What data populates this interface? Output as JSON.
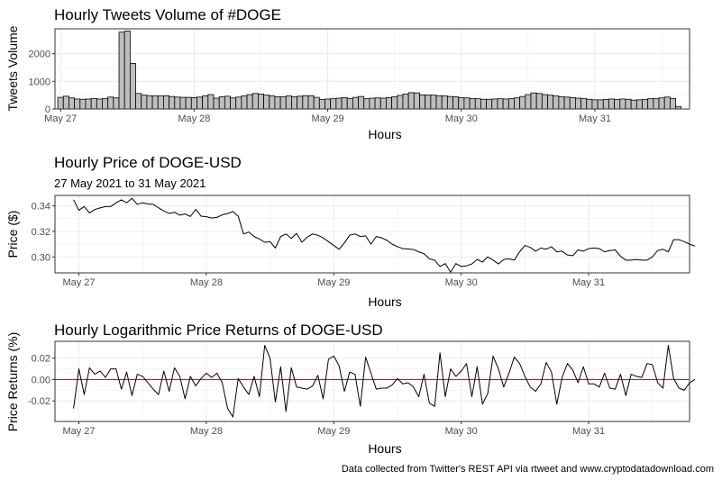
{
  "caption": "Data collected from Twitter's REST API via rtweet and www.cryptodatadownload.com",
  "colors": {
    "bar_fill": "#bebebe",
    "line": "#000000",
    "zero_line": "#b22222",
    "grid": "#ebebeb",
    "panel_border": "#333333"
  },
  "chart_data": [
    {
      "type": "bar",
      "title": "Hourly Tweets Volume of #DOGE",
      "xlabel": "Hours",
      "ylabel": "Tweets Volume",
      "xticks": [
        "May 27",
        "May 28",
        "May 29",
        "May 30",
        "May 31"
      ],
      "yticks": [
        "0",
        "1000",
        "2000"
      ],
      "ylim": [
        0,
        2900
      ],
      "x_hour_range": [
        -1,
        113
      ],
      "grid": true,
      "values": [
        420,
        460,
        400,
        360,
        350,
        360,
        380,
        360,
        380,
        430,
        400,
        2780,
        2820,
        1650,
        560,
        500,
        480,
        470,
        470,
        480,
        450,
        430,
        420,
        420,
        410,
        430,
        470,
        520,
        390,
        440,
        460,
        400,
        430,
        470,
        520,
        560,
        540,
        500,
        470,
        440,
        440,
        470,
        440,
        460,
        480,
        480,
        420,
        340,
        360,
        370,
        390,
        410,
        380,
        420,
        450,
        370,
        390,
        400,
        390,
        410,
        440,
        490,
        540,
        590,
        580,
        510,
        510,
        500,
        480,
        470,
        450,
        440,
        410,
        400,
        380,
        370,
        350,
        350,
        360,
        370,
        360,
        370,
        400,
        450,
        520,
        580,
        560,
        520,
        500,
        470,
        440,
        430,
        410,
        390,
        380,
        350,
        330,
        330,
        340,
        360,
        340,
        360,
        350,
        320,
        330,
        340,
        380,
        370,
        400,
        430,
        380,
        90
      ]
    },
    {
      "type": "line",
      "title": "Hourly Price of DOGE-USD",
      "subtitle": "27 May 2021 to 31 May 2021",
      "xlabel": "Hours",
      "ylabel": "Price ($)",
      "xticks": [
        "May 27",
        "May 28",
        "May 29",
        "May 30",
        "May 31"
      ],
      "yticks": [
        "0.30",
        "0.32",
        "0.34"
      ],
      "ylim": [
        0.2875,
        0.3482
      ],
      "x_hour_range": [
        -3.5,
        116
      ],
      "grid": true,
      "values": [
        0.3448,
        0.3365,
        0.3395,
        0.3345,
        0.3372,
        0.3384,
        0.3395,
        0.3395,
        0.3424,
        0.3447,
        0.3425,
        0.3459,
        0.3412,
        0.3425,
        0.3415,
        0.3412,
        0.3385,
        0.336,
        0.3341,
        0.335,
        0.3327,
        0.3337,
        0.3317,
        0.3372,
        0.332,
        0.3315,
        0.3305,
        0.331,
        0.333,
        0.334,
        0.3356,
        0.332,
        0.318,
        0.3195,
        0.316,
        0.314,
        0.3115,
        0.312,
        0.307,
        0.316,
        0.318,
        0.3145,
        0.3185,
        0.3115,
        0.3155,
        0.318,
        0.317,
        0.315,
        0.312,
        0.309,
        0.306,
        0.311,
        0.317,
        0.318,
        0.316,
        0.3165,
        0.31,
        0.316,
        0.315,
        0.313,
        0.31,
        0.308,
        0.3065,
        0.3062,
        0.3058,
        0.304,
        0.3025,
        0.2985,
        0.2975,
        0.2925,
        0.2948,
        0.288,
        0.2948,
        0.2925,
        0.293,
        0.2945,
        0.298,
        0.296,
        0.3,
        0.2975,
        0.2945,
        0.298,
        0.2985,
        0.2975,
        0.304,
        0.309,
        0.3075,
        0.3045,
        0.307,
        0.306,
        0.308,
        0.304,
        0.3045,
        0.3015,
        0.301,
        0.3055,
        0.3045,
        0.3065,
        0.307,
        0.3065,
        0.304,
        0.305,
        0.3055,
        0.3005,
        0.2975,
        0.2975,
        0.298,
        0.2975,
        0.2975,
        0.3,
        0.305,
        0.306,
        0.304,
        0.3135,
        0.3135,
        0.312,
        0.31,
        0.3085
      ]
    },
    {
      "type": "line",
      "title": "Hourly Logarithmic Price Returns of DOGE-USD",
      "xlabel": "Hours",
      "ylabel": "Price Returns (%)",
      "xticks": [
        "May 27",
        "May 28",
        "May 29",
        "May 30",
        "May 31"
      ],
      "yticks": [
        "-0.02",
        "0.00",
        "0.02"
      ],
      "ylim": [
        -0.0392,
        0.0358
      ],
      "x_hour_range": [
        -3.5,
        116
      ],
      "zero_line": true,
      "grid": true,
      "values": [
        -0.027,
        0.01,
        -0.014,
        0.011,
        0.005,
        0.008,
        0.002,
        0.01,
        0.01,
        -0.009,
        0.007,
        -0.015,
        0.005,
        0.003,
        -0.003,
        -0.009,
        -0.014,
        0.008,
        -0.011,
        0.011,
        0.003,
        -0.018,
        0.003,
        -0.006,
        0.001,
        0.006,
        0.002,
        0.006,
        -0.003,
        -0.027,
        -0.035,
        0.001,
        -0.007,
        -0.014,
        0.003,
        -0.016,
        0.032,
        0.02,
        -0.021,
        0.012,
        -0.03,
        0.011,
        -0.007,
        -0.008,
        -0.009,
        -0.006,
        0.004,
        -0.018,
        0.019,
        0.022,
        0.013,
        -0.011,
        0.007,
        0.005,
        -0.025,
        0.021,
        0.006,
        -0.009,
        -0.008,
        -0.008,
        -0.005,
        0.001,
        -0.004,
        -0.003,
        -0.007,
        -0.016,
        0.005,
        -0.022,
        -0.025,
        0.025,
        -0.016,
        0.01,
        0.003,
        0.008,
        0.015,
        -0.016,
        0.012,
        -0.023,
        -0.013,
        0.022,
        0.01,
        -0.007,
        0.006,
        0.021,
        0.015,
        0.003,
        -0.007,
        -0.011,
        -0.004,
        0.016,
        0.007,
        -0.023,
        0.002,
        0.015,
        0.009,
        -0.003,
        0.012,
        -0.004,
        -0.004,
        -0.007,
        0.006,
        -0.008,
        -0.009,
        0.005,
        -0.015,
        0.005,
        0.003,
        0.002,
        0.015,
        0.014,
        -0.003,
        -0.008,
        0.032,
        0.001,
        -0.008,
        -0.01,
        -0.003,
        0.0
      ]
    }
  ]
}
